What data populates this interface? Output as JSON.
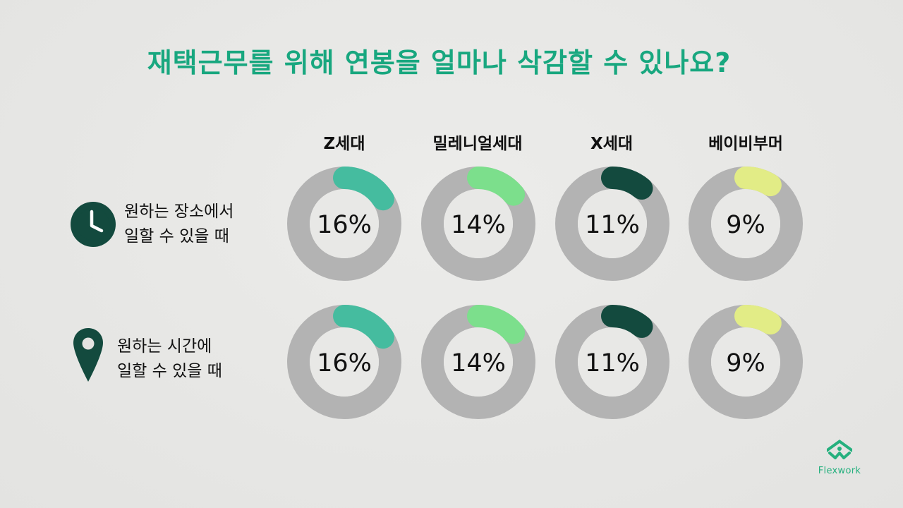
{
  "title": "재택근무를 위해 연봉을 얼마나 삭감할 수 있나요?",
  "colors": {
    "title": "#18a77f",
    "ring": "#b3b3b3",
    "inner": "#e8e8e6",
    "dark": "#134a3e",
    "logo": "#25b07e"
  },
  "rows": [
    {
      "line1": "원하는 장소에서",
      "line2": "일할 수 있을 때",
      "icon": "clock-icon"
    },
    {
      "line1": "원하는 시간에",
      "line2": "일할 수 있을 때",
      "icon": "location-pin-icon"
    }
  ],
  "chart_data": {
    "type": "donut",
    "title": "재택근무를 위해 연봉을 얼마나 삭감할 수 있나요?",
    "categories": [
      "Z세대",
      "밀레니얼세대",
      "X세대",
      "베이비부머"
    ],
    "category_colors": [
      "#45bc9f",
      "#7cdf8c",
      "#134a3e",
      "#e2ec86"
    ],
    "series": [
      {
        "name": "원하는 장소에서 일할 수 있을 때",
        "values": [
          16,
          14,
          11,
          9
        ],
        "labels": [
          "16%",
          "14%",
          "11%",
          "9%"
        ]
      },
      {
        "name": "원하는 시간에 일할 수 있을 때",
        "values": [
          16,
          14,
          11,
          9
        ],
        "labels": [
          "16%",
          "14%",
          "11%",
          "9%"
        ]
      }
    ],
    "unit": "%"
  },
  "logo": {
    "text": "Flexwork",
    "icon": "flexwork-logo-icon"
  }
}
